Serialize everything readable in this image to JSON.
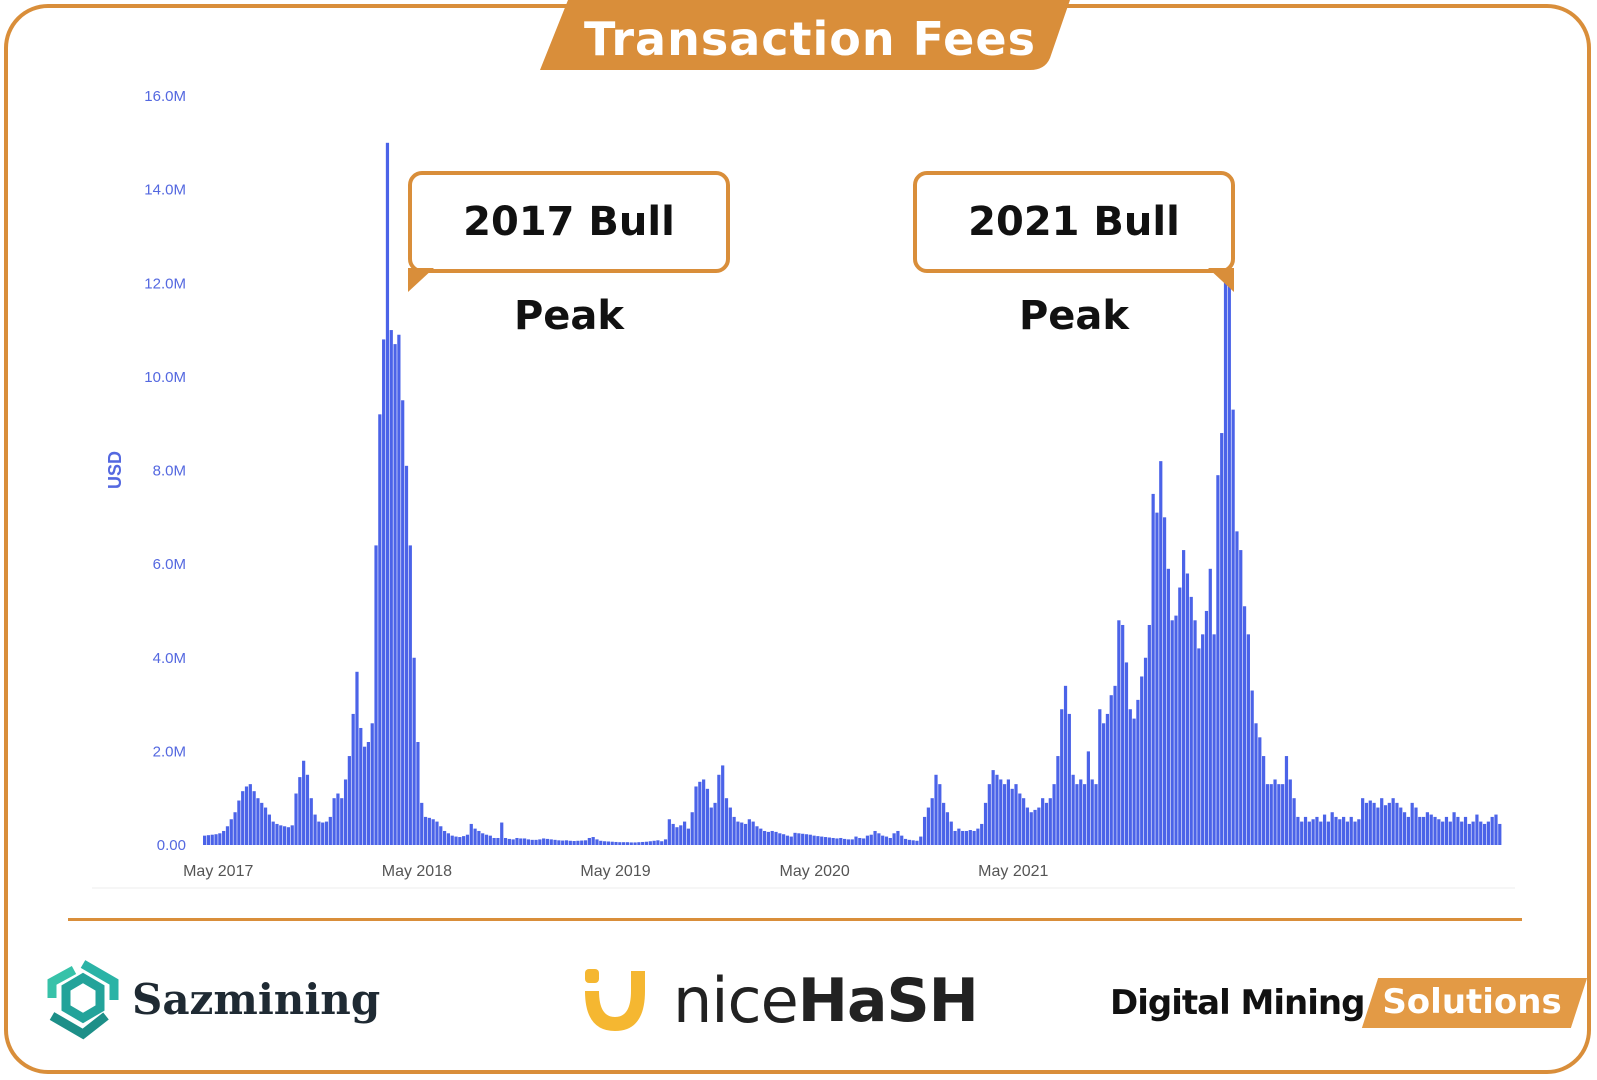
{
  "header": {
    "title": "Transaction Fees"
  },
  "colors": {
    "accent": "#d98e3a",
    "bar": "#4b63e8",
    "tick": "#5468e0"
  },
  "callouts": [
    {
      "label": "2017 Bull Peak"
    },
    {
      "label": "2021 Bull Peak"
    }
  ],
  "logos": {
    "sazmining": "Sazmining",
    "nicehash_light": "nice",
    "nicehash_bold": "HaSH",
    "dms_dark": "Digital Mining",
    "dms_light": "Solutions"
  },
  "chart_data": {
    "type": "bar",
    "ylabel": "USD",
    "ylim": [
      0,
      16000000
    ],
    "y_ticks": [
      "0.00",
      "2.0M",
      "4.0M",
      "6.0M",
      "8.0M",
      "10.0M",
      "12.0M",
      "14.0M",
      "16.0M"
    ],
    "x_ticks": [
      "May 2017",
      "May 2018",
      "May 2019",
      "May 2020",
      "May 2021"
    ],
    "grid": false,
    "x_unit": "week",
    "start_week": "2017-04-03",
    "values": [
      200000,
      210000,
      220000,
      230000,
      250000,
      300000,
      400000,
      550000,
      700000,
      950000,
      1150000,
      1250000,
      1300000,
      1150000,
      1000000,
      900000,
      800000,
      650000,
      500000,
      450000,
      420000,
      400000,
      380000,
      420000,
      1100000,
      1450000,
      1800000,
      1500000,
      1000000,
      650000,
      500000,
      480000,
      500000,
      600000,
      1000000,
      1100000,
      1000000,
      1400000,
      1900000,
      2800000,
      3700000,
      2500000,
      2100000,
      2200000,
      2600000,
      6400000,
      9200000,
      10800000,
      15000000,
      11000000,
      10700000,
      10900000,
      9500000,
      8100000,
      6400000,
      4000000,
      2200000,
      900000,
      600000,
      580000,
      550000,
      500000,
      400000,
      300000,
      250000,
      200000,
      180000,
      170000,
      190000,
      220000,
      450000,
      350000,
      300000,
      250000,
      220000,
      200000,
      150000,
      150000,
      480000,
      150000,
      130000,
      120000,
      150000,
      140000,
      140000,
      120000,
      110000,
      110000,
      120000,
      140000,
      130000,
      120000,
      110000,
      100000,
      95000,
      100000,
      90000,
      85000,
      90000,
      95000,
      100000,
      150000,
      170000,
      120000,
      90000,
      80000,
      75000,
      70000,
      65000,
      60000,
      60000,
      60000,
      55000,
      55000,
      60000,
      65000,
      70000,
      80000,
      90000,
      100000,
      80000,
      120000,
      550000,
      450000,
      380000,
      420000,
      500000,
      350000,
      700000,
      1250000,
      1350000,
      1400000,
      1200000,
      800000,
      900000,
      1500000,
      1700000,
      1000000,
      800000,
      600000,
      500000,
      480000,
      450000,
      550000,
      500000,
      400000,
      350000,
      300000,
      280000,
      300000,
      280000,
      250000,
      230000,
      200000,
      180000,
      260000,
      250000,
      240000,
      230000,
      220000,
      200000,
      190000,
      180000,
      170000,
      160000,
      150000,
      140000,
      150000,
      130000,
      120000,
      120000,
      180000,
      150000,
      140000,
      200000,
      220000,
      300000,
      250000,
      200000,
      180000,
      150000,
      250000,
      300000,
      200000,
      130000,
      110000,
      100000,
      90000,
      180000,
      600000,
      800000,
      1000000,
      1500000,
      1300000,
      900000,
      700000,
      500000,
      300000,
      350000,
      300000,
      300000,
      320000,
      300000,
      350000,
      450000,
      900000,
      1300000,
      1600000,
      1500000,
      1400000,
      1300000,
      1400000,
      1200000,
      1300000,
      1100000,
      1000000,
      800000,
      700000,
      750000,
      800000,
      1000000,
      900000,
      1000000,
      1300000,
      1900000,
      2900000,
      3400000,
      2800000,
      1500000,
      1300000,
      1400000,
      1300000,
      2000000,
      1400000,
      1300000,
      2900000,
      2600000,
      2800000,
      3200000,
      3400000,
      4800000,
      4700000,
      3900000,
      2900000,
      2700000,
      3100000,
      3600000,
      4000000,
      4700000,
      7500000,
      7100000,
      8200000,
      7000000,
      5900000,
      4800000,
      4900000,
      5500000,
      6300000,
      5800000,
      5300000,
      4800000,
      4200000,
      4500000,
      5000000,
      5900000,
      4500000,
      7900000,
      8800000,
      13000000,
      12000000,
      9300000,
      6700000,
      6300000,
      5100000,
      4500000,
      3300000,
      2600000,
      2300000,
      1900000,
      1300000,
      1300000,
      1400000,
      1300000,
      1300000,
      1900000,
      1400000,
      1000000,
      600000,
      500000,
      600000,
      500000,
      550000,
      600000,
      500000,
      650000,
      500000,
      700000,
      600000,
      550000,
      600000,
      500000,
      600000,
      500000,
      550000,
      1000000,
      900000,
      950000,
      900000,
      800000,
      1000000,
      850000,
      900000,
      1000000,
      900000,
      800000,
      700000,
      600000,
      900000,
      800000,
      600000,
      600000,
      700000,
      650000,
      600000,
      550000,
      500000,
      600000,
      500000,
      700000,
      600000,
      500000,
      600000,
      450000,
      500000,
      650000,
      500000,
      450000,
      500000,
      600000,
      650000,
      450000
    ]
  }
}
